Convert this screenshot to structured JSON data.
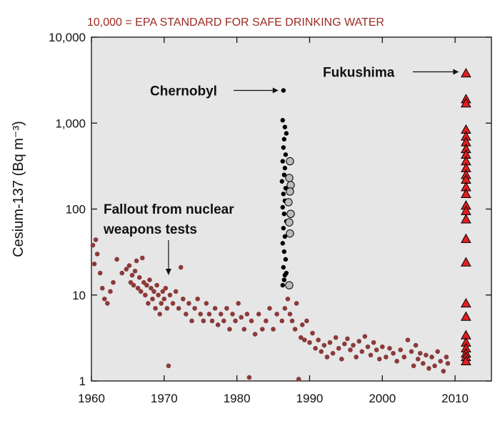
{
  "chart_data": {
    "type": "scatter",
    "title": "10,000 = EPA STANDARD FOR SAFE DRINKING WATER",
    "ylabel": "Cesium-137 (Bq m⁻³)",
    "xlabel": "",
    "xlim": [
      1960,
      2015
    ],
    "ylim": [
      1,
      10000
    ],
    "yscale": "log",
    "grid": false,
    "x_ticks": [
      1960,
      1970,
      1980,
      1990,
      2000,
      2010
    ],
    "y_ticks": [
      1,
      10,
      100,
      1000,
      10000
    ],
    "y_tick_labels": [
      "1",
      "10",
      "100",
      "1,000",
      "10,000"
    ],
    "annotations": [
      {
        "id": "chernobyl",
        "text": "Chernobyl",
        "x": 1986.5,
        "y": 2400
      },
      {
        "id": "fukushima",
        "text": "Fukushima",
        "x": 2011.5,
        "y": 3800
      },
      {
        "id": "fallout",
        "text": "Fallout from nuclear weapons tests",
        "lines": [
          "Fallout from nuclear",
          "weapons tests"
        ],
        "x": 1970.6,
        "y": 17
      }
    ],
    "series": [
      {
        "name": "Fallout from nuclear weapons tests",
        "marker": "circle",
        "color": "#8b3a3a",
        "points": [
          [
            1960.2,
            38
          ],
          [
            1960.4,
            23
          ],
          [
            1960.6,
            44
          ],
          [
            1960.8,
            30
          ],
          [
            1961.2,
            18
          ],
          [
            1961.5,
            12
          ],
          [
            1961.8,
            9
          ],
          [
            1962.2,
            8
          ],
          [
            1962.6,
            11
          ],
          [
            1963.0,
            14
          ],
          [
            1963.5,
            26
          ],
          [
            1964.2,
            18
          ],
          [
            1964.8,
            20
          ],
          [
            1965.2,
            22
          ],
          [
            1965.4,
            14
          ],
          [
            1965.6,
            17
          ],
          [
            1965.8,
            13
          ],
          [
            1966.0,
            19
          ],
          [
            1966.2,
            25
          ],
          [
            1966.4,
            12
          ],
          [
            1966.6,
            16
          ],
          [
            1966.8,
            11
          ],
          [
            1967.0,
            27
          ],
          [
            1967.2,
            14
          ],
          [
            1967.4,
            10
          ],
          [
            1967.6,
            13
          ],
          [
            1967.8,
            8
          ],
          [
            1968.0,
            15
          ],
          [
            1968.2,
            12
          ],
          [
            1968.4,
            9
          ],
          [
            1968.6,
            11
          ],
          [
            1968.8,
            7
          ],
          [
            1969.0,
            13
          ],
          [
            1969.2,
            10
          ],
          [
            1969.4,
            6
          ],
          [
            1969.6,
            8
          ],
          [
            1969.8,
            11
          ],
          [
            1970.0,
            9
          ],
          [
            1970.2,
            12
          ],
          [
            1970.4,
            7
          ],
          [
            1970.6,
            1.5
          ],
          [
            1970.8,
            10
          ],
          [
            1971.2,
            8
          ],
          [
            1971.6,
            11
          ],
          [
            1972.0,
            7
          ],
          [
            1972.3,
            21
          ],
          [
            1972.6,
            9
          ],
          [
            1973.0,
            6
          ],
          [
            1973.4,
            8
          ],
          [
            1973.8,
            5
          ],
          [
            1974.2,
            7
          ],
          [
            1974.6,
            9
          ],
          [
            1975.0,
            6
          ],
          [
            1975.4,
            5
          ],
          [
            1975.8,
            8
          ],
          [
            1976.2,
            6
          ],
          [
            1976.6,
            5
          ],
          [
            1977.0,
            7
          ],
          [
            1977.4,
            4.5
          ],
          [
            1977.8,
            6
          ],
          [
            1978.2,
            5
          ],
          [
            1978.6,
            7
          ],
          [
            1979.0,
            4
          ],
          [
            1979.4,
            6
          ],
          [
            1979.8,
            5
          ],
          [
            1980.2,
            8
          ],
          [
            1980.6,
            5.5
          ],
          [
            1981.0,
            4
          ],
          [
            1981.4,
            6
          ],
          [
            1981.7,
            1.1
          ],
          [
            1982.0,
            5
          ],
          [
            1982.5,
            3.5
          ],
          [
            1983.0,
            6
          ],
          [
            1983.5,
            4
          ],
          [
            1984.0,
            5
          ],
          [
            1984.5,
            7
          ],
          [
            1985.0,
            4
          ],
          [
            1985.5,
            6
          ],
          [
            1986.2,
            5
          ],
          [
            1986.6,
            7
          ],
          [
            1987.0,
            9
          ],
          [
            1987.3,
            6
          ],
          [
            1987.6,
            5
          ],
          [
            1988.0,
            4
          ],
          [
            1988.2,
            8
          ],
          [
            1988.5,
            1.05
          ],
          [
            1988.8,
            3.2
          ],
          [
            1989.0,
            4.5
          ],
          [
            1989.3,
            3
          ],
          [
            1989.6,
            5
          ],
          [
            1990.0,
            2.8
          ],
          [
            1990.4,
            3.6
          ],
          [
            1990.8,
            2.4
          ],
          [
            1991.2,
            3
          ],
          [
            1991.6,
            2.2
          ],
          [
            1992.0,
            2.6
          ],
          [
            1992.4,
            1.9
          ],
          [
            1992.8,
            2.8
          ],
          [
            1993.2,
            2.1
          ],
          [
            1993.6,
            3.2
          ],
          [
            1994.0,
            2.4
          ],
          [
            1994.4,
            1.8
          ],
          [
            1994.8,
            2.7
          ],
          [
            1995.2,
            3.1
          ],
          [
            1995.6,
            2.3
          ],
          [
            1996.0,
            2.6
          ],
          [
            1996.4,
            1.9
          ],
          [
            1996.8,
            2.9
          ],
          [
            1997.2,
            2.2
          ],
          [
            1997.6,
            3.3
          ],
          [
            1998.0,
            2.5
          ],
          [
            1998.4,
            2
          ],
          [
            1998.8,
            2.8
          ],
          [
            1999.2,
            2.3
          ],
          [
            1999.6,
            1.8
          ],
          [
            2000.0,
            2.5
          ],
          [
            2000.5,
            1.9
          ],
          [
            2001.0,
            2.4
          ],
          [
            2001.5,
            2.1
          ],
          [
            2002.0,
            1.7
          ],
          [
            2002.5,
            2.3
          ],
          [
            2003.0,
            1.9
          ],
          [
            2003.5,
            3
          ],
          [
            2004.0,
            2.2
          ],
          [
            2004.3,
            1.5
          ],
          [
            2004.6,
            2.6
          ],
          [
            2004.9,
            1.8
          ],
          [
            2005.2,
            2.1
          ],
          [
            2005.6,
            1.6
          ],
          [
            2006.0,
            2
          ],
          [
            2006.4,
            1.4
          ],
          [
            2006.8,
            1.9
          ],
          [
            2007.2,
            1.5
          ],
          [
            2007.6,
            2.2
          ],
          [
            2008.0,
            1.7
          ],
          [
            2008.4,
            1.3
          ],
          [
            2008.8,
            1.9
          ],
          [
            2009.0,
            1.6
          ]
        ]
      },
      {
        "name": "Chernobyl",
        "marker": "circle",
        "color": "#000000",
        "points": [
          [
            1986.4,
            2400
          ],
          [
            1986.3,
            1080
          ],
          [
            1986.6,
            900
          ],
          [
            1986.8,
            760
          ],
          [
            1986.5,
            650
          ],
          [
            1986.4,
            520
          ],
          [
            1986.7,
            430
          ],
          [
            1986.3,
            360
          ],
          [
            1986.6,
            300
          ],
          [
            1986.5,
            250
          ],
          [
            1986.2,
            210
          ],
          [
            1986.7,
            175
          ],
          [
            1986.4,
            150
          ],
          [
            1986.6,
            125
          ],
          [
            1986.3,
            105
          ],
          [
            1986.5,
            88
          ],
          [
            1986.8,
            72
          ],
          [
            1986.4,
            60
          ],
          [
            1986.6,
            48
          ],
          [
            1986.3,
            40
          ],
          [
            1986.5,
            32
          ],
          [
            1986.7,
            26
          ],
          [
            1986.4,
            21
          ],
          [
            1986.6,
            17
          ],
          [
            1986.5,
            15
          ],
          [
            1986.3,
            13
          ],
          [
            1986.8,
            18
          ]
        ]
      },
      {
        "name": "Chernobyl (grey)",
        "marker": "circle",
        "color": "#bbbbbb",
        "points": [
          [
            1987.3,
            360
          ],
          [
            1987.2,
            230
          ],
          [
            1987.4,
            190
          ],
          [
            1987.3,
            160
          ],
          [
            1987.1,
            120
          ],
          [
            1987.4,
            88
          ],
          [
            1987.2,
            70
          ],
          [
            1987.3,
            52
          ],
          [
            1987.2,
            13
          ]
        ]
      },
      {
        "name": "Fukushima",
        "marker": "triangle",
        "color": "#e02020",
        "points": [
          [
            2011.5,
            3800
          ],
          [
            2011.5,
            1900
          ],
          [
            2011.5,
            1700
          ],
          [
            2011.5,
            840
          ],
          [
            2011.5,
            700
          ],
          [
            2011.5,
            600
          ],
          [
            2011.5,
            500
          ],
          [
            2011.5,
            430
          ],
          [
            2011.5,
            360
          ],
          [
            2011.5,
            300
          ],
          [
            2011.5,
            250
          ],
          [
            2011.5,
            220
          ],
          [
            2011.5,
            180
          ],
          [
            2011.5,
            150
          ],
          [
            2011.5,
            110
          ],
          [
            2011.5,
            95
          ],
          [
            2011.5,
            76
          ],
          [
            2011.5,
            45
          ],
          [
            2011.5,
            24
          ],
          [
            2011.5,
            8
          ],
          [
            2011.5,
            5.6
          ],
          [
            2011.5,
            3.4
          ],
          [
            2011.5,
            2.8
          ],
          [
            2011.5,
            2.4
          ],
          [
            2011.5,
            2.1
          ],
          [
            2011.5,
            1.9
          ],
          [
            2011.5,
            1.7
          ]
        ]
      }
    ]
  }
}
